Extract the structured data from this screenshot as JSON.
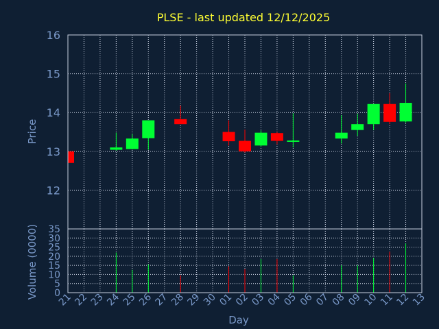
{
  "chart_data": {
    "type": "candlestick",
    "title": "PLSE - last updated 12/12/2025",
    "xlabel": "Day",
    "price_panel": {
      "ylabel": "Price",
      "ylim": [
        11,
        16
      ],
      "yticks": [
        12,
        13,
        14,
        15,
        16
      ],
      "grid": true
    },
    "volume_panel": {
      "ylabel": "Volume (0000)",
      "ylim": [
        0,
        35
      ],
      "yticks": [
        0,
        5,
        10,
        15,
        20,
        25,
        30,
        35
      ],
      "grid": true
    },
    "x_tick_labels": [
      "21",
      "22",
      "23",
      "24",
      "25",
      "26",
      "27",
      "28",
      "29",
      "30",
      "01",
      "02",
      "03",
      "04",
      "05",
      "06",
      "07",
      "08",
      "09",
      "10",
      "11",
      "12",
      "13"
    ],
    "candles": [
      {
        "x": "21",
        "open": 13.0,
        "high": 13.0,
        "low": 12.7,
        "close": 12.7,
        "volume": 0
      },
      {
        "x": "24",
        "open": 13.04,
        "high": 13.48,
        "low": 13.02,
        "close": 13.1,
        "volume": 22
      },
      {
        "x": "25",
        "open": 13.06,
        "high": 13.45,
        "low": 13.05,
        "close": 13.33,
        "volume": 12.5
      },
      {
        "x": "26",
        "open": 13.34,
        "high": 13.8,
        "low": 13.04,
        "close": 13.8,
        "volume": 15.5
      },
      {
        "x": "28",
        "open": 13.83,
        "high": 14.18,
        "low": 13.7,
        "close": 13.7,
        "volume": 9.5
      },
      {
        "x": "01",
        "open": 13.5,
        "high": 13.8,
        "low": 13.15,
        "close": 13.26,
        "volume": 14.5
      },
      {
        "x": "02",
        "open": 13.27,
        "high": 13.56,
        "low": 12.97,
        "close": 13.0,
        "volume": 13
      },
      {
        "x": "03",
        "open": 13.15,
        "high": 13.54,
        "low": 13.12,
        "close": 13.48,
        "volume": 18.5
      },
      {
        "x": "04",
        "open": 13.47,
        "high": 13.5,
        "low": 13.18,
        "close": 13.27,
        "volume": 18.5
      },
      {
        "x": "05",
        "open": 13.25,
        "high": 13.98,
        "low": 13.1,
        "close": 13.28,
        "volume": 9.5
      },
      {
        "x": "08",
        "open": 13.33,
        "high": 13.93,
        "low": 13.2,
        "close": 13.48,
        "volume": 15
      },
      {
        "x": "09",
        "open": 13.55,
        "high": 13.97,
        "low": 13.4,
        "close": 13.7,
        "volume": 15
      },
      {
        "x": "10",
        "open": 13.7,
        "high": 14.22,
        "low": 13.55,
        "close": 14.22,
        "volume": 19
      },
      {
        "x": "11",
        "open": 14.22,
        "high": 14.5,
        "low": 13.7,
        "close": 13.76,
        "volume": 22.5
      },
      {
        "x": "12",
        "open": 13.77,
        "high": 14.75,
        "low": 13.74,
        "close": 14.25,
        "volume": 27
      }
    ],
    "colors": {
      "background": "#0f1f33",
      "up": "#00ff33",
      "down": "#ff0000",
      "grid": "#d0d8e8",
      "axis": "#c8d2e2",
      "text": "#7a99c9",
      "title": "#ffff33"
    }
  }
}
